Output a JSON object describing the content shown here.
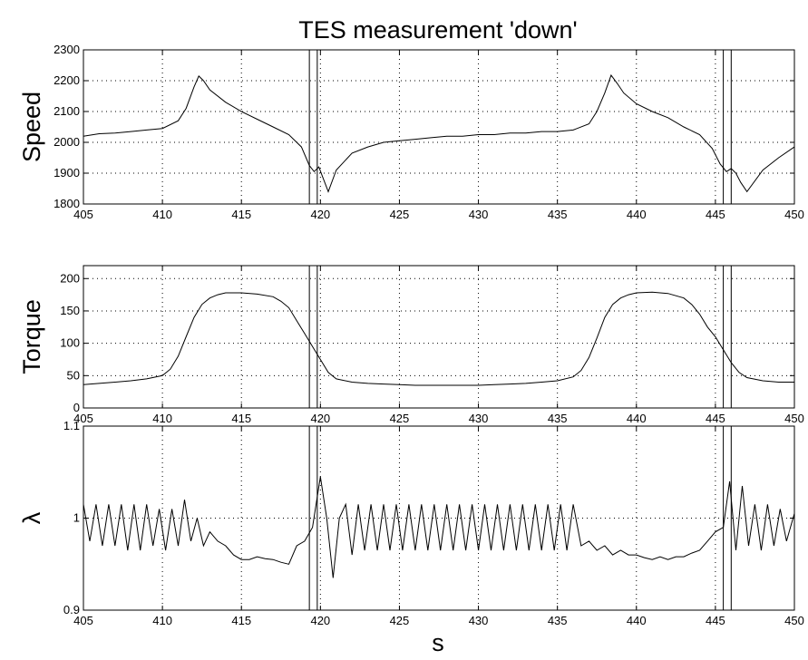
{
  "title": "TES measurement 'down'",
  "xlabel": "s",
  "chart_data": [
    {
      "type": "line",
      "ylabel": "Speed",
      "xlim": [
        405,
        450
      ],
      "ylim": [
        1800,
        2300
      ],
      "xticks": [
        405,
        410,
        415,
        420,
        425,
        430,
        435,
        440,
        445,
        450
      ],
      "yticks": [
        1800,
        1900,
        2000,
        2100,
        2200,
        2300
      ],
      "grid": true,
      "vlines": [
        419.3,
        419.8,
        445.5,
        446.0
      ],
      "series": [
        {
          "x": [
            405,
            406,
            407,
            408,
            409,
            410,
            411,
            411.5,
            412,
            412.3,
            412.6,
            413,
            414,
            415,
            416,
            417,
            418,
            418.8,
            419.3,
            419.6,
            419.9,
            420.2,
            420.5,
            421,
            422,
            423,
            424,
            425,
            426,
            427,
            428,
            429,
            430,
            431,
            432,
            433,
            434,
            435,
            436,
            437,
            437.5,
            438,
            438.4,
            438.8,
            439.2,
            440,
            441,
            442,
            443,
            444,
            444.8,
            445.3,
            445.7,
            446.0,
            446.3,
            446.6,
            447,
            448,
            449,
            450
          ],
          "y": [
            2020,
            2028,
            2030,
            2035,
            2040,
            2045,
            2070,
            2110,
            2180,
            2215,
            2200,
            2170,
            2130,
            2100,
            2075,
            2050,
            2025,
            1985,
            1925,
            1905,
            1920,
            1880,
            1840,
            1910,
            1965,
            1985,
            2000,
            2005,
            2010,
            2015,
            2020,
            2020,
            2025,
            2025,
            2030,
            2030,
            2035,
            2035,
            2040,
            2060,
            2100,
            2160,
            2218,
            2190,
            2160,
            2125,
            2100,
            2080,
            2050,
            2025,
            1980,
            1930,
            1905,
            1915,
            1900,
            1870,
            1840,
            1910,
            1950,
            1985
          ]
        }
      ]
    },
    {
      "type": "line",
      "ylabel": "Torque",
      "xlim": [
        405,
        450
      ],
      "ylim": [
        0,
        220
      ],
      "xticks": [
        405,
        410,
        415,
        420,
        425,
        430,
        435,
        440,
        445,
        450
      ],
      "yticks": [
        0,
        50,
        100,
        150,
        200
      ],
      "grid": true,
      "vlines": [
        419.3,
        419.8,
        445.5,
        446.0
      ],
      "series": [
        {
          "x": [
            405,
            406,
            407,
            408,
            409,
            410,
            410.5,
            411,
            411.5,
            412,
            412.5,
            413,
            413.5,
            414,
            415,
            416,
            417,
            417.5,
            418,
            418.5,
            419,
            419.5,
            420,
            420.5,
            421,
            422,
            423,
            424,
            425,
            426,
            427,
            428,
            429,
            430,
            431,
            432,
            433,
            434,
            435,
            436,
            436.5,
            437,
            437.5,
            438,
            438.5,
            439,
            439.5,
            440,
            441,
            442,
            443,
            443.5,
            444,
            444.5,
            445,
            445.5,
            446,
            446.5,
            447,
            448,
            449,
            450
          ],
          "y": [
            36,
            38,
            40,
            42,
            45,
            50,
            60,
            80,
            110,
            140,
            160,
            170,
            175,
            178,
            178,
            176,
            172,
            165,
            155,
            135,
            115,
            95,
            75,
            55,
            45,
            40,
            38,
            37,
            36,
            35,
            35,
            35,
            35,
            35,
            36,
            37,
            38,
            40,
            42,
            48,
            58,
            78,
            108,
            140,
            160,
            170,
            175,
            178,
            179,
            177,
            170,
            160,
            145,
            125,
            110,
            90,
            70,
            55,
            47,
            42,
            40,
            40
          ]
        }
      ]
    },
    {
      "type": "line",
      "ylabel": "λ",
      "xlim": [
        405,
        450
      ],
      "ylim": [
        0.9,
        1.1
      ],
      "xticks": [
        405,
        410,
        415,
        420,
        425,
        430,
        435,
        440,
        445,
        450
      ],
      "yticks": [
        0.9,
        1,
        1.1
      ],
      "grid": true,
      "vlines": [
        419.3,
        419.8,
        445.5,
        446.0
      ],
      "series": [
        {
          "x": [
            405,
            405.4,
            405.8,
            406.2,
            406.6,
            407,
            407.4,
            407.8,
            408.2,
            408.6,
            409,
            409.4,
            409.8,
            410.2,
            410.6,
            411,
            411.4,
            411.8,
            412.2,
            412.6,
            413,
            413.5,
            414,
            414.5,
            415,
            415.5,
            416,
            416.5,
            417,
            417.5,
            418,
            418.5,
            419,
            419.5,
            420,
            420.4,
            420.8,
            421.2,
            421.6,
            422,
            422.4,
            422.8,
            423.2,
            423.6,
            424,
            424.4,
            424.8,
            425.2,
            425.6,
            426,
            426.4,
            426.8,
            427.2,
            427.6,
            428,
            428.4,
            428.8,
            429.2,
            429.6,
            430,
            430.4,
            430.8,
            431.2,
            431.6,
            432,
            432.4,
            432.8,
            433.2,
            433.6,
            434,
            434.4,
            434.8,
            435.2,
            435.6,
            436,
            436.5,
            437,
            437.5,
            438,
            438.5,
            439,
            439.5,
            440,
            440.5,
            441,
            441.5,
            442,
            442.5,
            443,
            443.5,
            444,
            444.5,
            445,
            445.5,
            445.9,
            446.3,
            446.7,
            447.1,
            447.5,
            447.9,
            448.3,
            448.7,
            449.1,
            449.5,
            450
          ],
          "y": [
            1.015,
            0.975,
            1.015,
            0.97,
            1.015,
            0.97,
            1.015,
            0.965,
            1.015,
            0.965,
            1.015,
            0.97,
            1.01,
            0.965,
            1.01,
            0.97,
            1.02,
            0.975,
            1.0,
            0.97,
            0.985,
            0.975,
            0.97,
            0.96,
            0.955,
            0.955,
            0.958,
            0.956,
            0.955,
            0.952,
            0.95,
            0.97,
            0.975,
            0.99,
            1.045,
            1.0,
            0.935,
            1.0,
            1.015,
            0.96,
            1.015,
            0.965,
            1.015,
            0.965,
            1.015,
            0.965,
            1.015,
            0.965,
            1.015,
            0.965,
            1.015,
            0.965,
            1.015,
            0.965,
            1.015,
            0.965,
            1.015,
            0.965,
            1.015,
            0.965,
            1.015,
            0.965,
            1.015,
            0.965,
            1.015,
            0.965,
            1.015,
            0.965,
            1.015,
            0.965,
            1.015,
            0.965,
            1.015,
            0.965,
            1.015,
            0.97,
            0.975,
            0.965,
            0.97,
            0.96,
            0.965,
            0.96,
            0.96,
            0.957,
            0.955,
            0.958,
            0.955,
            0.958,
            0.958,
            0.962,
            0.965,
            0.975,
            0.985,
            0.99,
            1.04,
            0.965,
            1.035,
            0.97,
            1.015,
            0.965,
            1.015,
            0.97,
            1.01,
            0.975,
            1.005
          ]
        }
      ]
    }
  ]
}
